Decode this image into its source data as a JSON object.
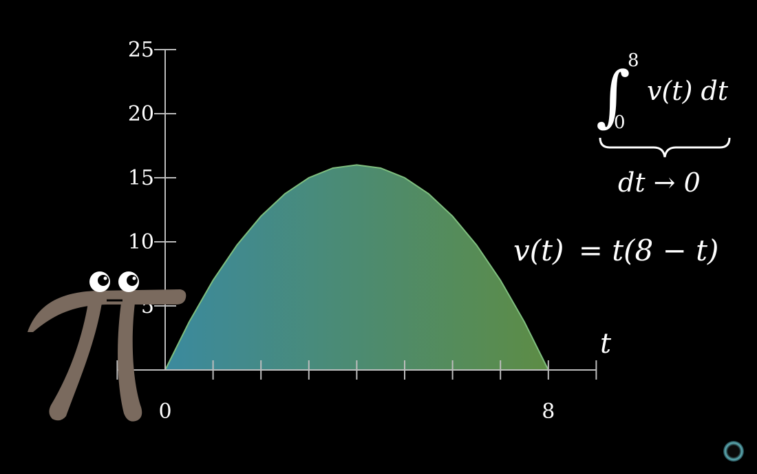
{
  "chart_data": {
    "type": "area",
    "function": "v(t) = t(8 - t)",
    "x": [
      0,
      0.5,
      1,
      1.5,
      2,
      2.5,
      3,
      3.5,
      4,
      4.5,
      5,
      5.5,
      6,
      6.5,
      7,
      7.5,
      8
    ],
    "y": [
      0,
      3.75,
      7,
      9.75,
      12,
      13.75,
      15,
      15.75,
      16,
      15.75,
      15,
      13.75,
      12,
      9.75,
      7,
      3.75,
      0
    ],
    "xlim": [
      0,
      9
    ],
    "ylim": [
      0,
      25
    ],
    "x_minor_ticks": [
      1,
      2,
      3,
      4,
      5,
      6,
      7,
      8,
      9
    ],
    "x_tick_labels": [
      {
        "value": 0,
        "label": "0"
      },
      {
        "value": 8,
        "label": "8"
      }
    ],
    "y_ticks": [
      5,
      10,
      15,
      20,
      25
    ],
    "y_tick_labels": [
      "5",
      "10",
      "15",
      "20",
      "25"
    ],
    "xlabel": "t",
    "ylabel": "",
    "grid": false,
    "fill_gradient": [
      "#3b8a9e",
      "#5d8c45"
    ],
    "curve_color": "#7fbf7f"
  },
  "equation": {
    "lhs": "v(t)",
    "rhs": "= t(8 − t)",
    "lhs_color": "#83c167",
    "rhs_color": "#ffffff"
  },
  "integral": {
    "symbol": "∫",
    "upper": "8",
    "lower": "0",
    "integrand": "v(t) dt",
    "underbrace_label": "dt → 0"
  },
  "mascot": {
    "name": "pi-creature",
    "glyph": "π",
    "color": "#7a6a5e"
  },
  "indicator": {
    "name": "loading-ring-icon"
  }
}
